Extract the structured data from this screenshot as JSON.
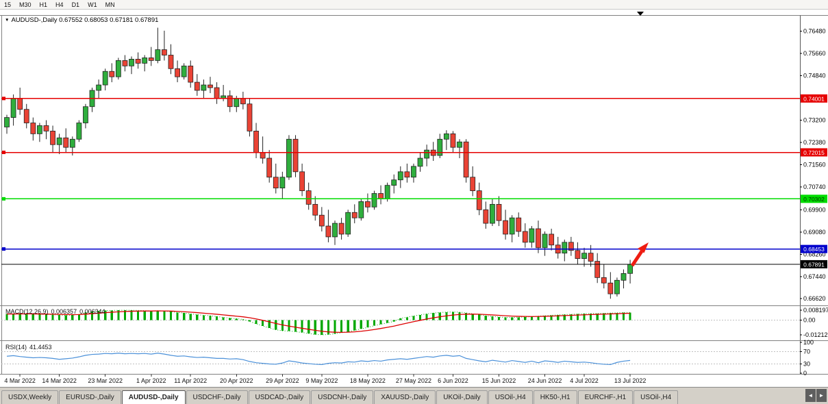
{
  "toolbar": {
    "timeframes": [
      "15",
      "M30",
      "H1",
      "H4",
      "D1",
      "W1",
      "MN"
    ]
  },
  "icons": {
    "legend_dropdown": "▼",
    "scroll_left": "◄",
    "scroll_right": "►"
  },
  "legend": {
    "text": "AUDUSD-,Daily 0.67552 0.68053 0.67181 0.67891"
  },
  "chart_data": {
    "type": "candlestick",
    "symbol": "AUDUSD-,Daily",
    "ohlc_display": {
      "open": "0.67552",
      "high": "0.68053",
      "low": "0.67181",
      "close": "0.67891"
    },
    "colors": {
      "bull": "#2fae3d",
      "bear": "#ea4335",
      "outline": "#222222",
      "hline_red": "#e60000",
      "hline_green": "#00dd00",
      "hline_blue": "#0000cc",
      "current": "#000000",
      "macd_hist": "#00a800",
      "macd_signal": "#dd0000",
      "rsi_line": "#4a90d9",
      "level_dash": "#c0c0c0",
      "separator": "#808080"
    },
    "price_axis": {
      "max": 0.77,
      "min": 0.665,
      "labels": [
        "0.76480",
        "0.75660",
        "0.74840",
        "0.73200",
        "0.72380",
        "0.71560",
        "0.70740",
        "0.69900",
        "0.69080",
        "0.68260",
        "0.67440",
        "0.66620"
      ]
    },
    "hlines": [
      {
        "price": 0.74001,
        "label": "0.74001",
        "color": "#e60000",
        "text_color": "#ffffff"
      },
      {
        "price": 0.72015,
        "label": "0.72015",
        "color": "#e60000",
        "text_color": "#ffffff"
      },
      {
        "price": 0.70302,
        "label": "0.70302",
        "color": "#00dd00",
        "text_color": "#003300"
      },
      {
        "price": 0.68453,
        "label": "0.68453",
        "color": "#0000cc",
        "text_color": "#ffffff"
      }
    ],
    "current_price": {
      "price": 0.67891,
      "label": "0.67891",
      "color": "#000000",
      "text_color": "#ffffff"
    },
    "x_ticks": [
      {
        "index": 2,
        "label": "4 Mar 2022"
      },
      {
        "index": 8,
        "label": "14 Mar 2022"
      },
      {
        "index": 15,
        "label": "23 Mar 2022"
      },
      {
        "index": 22,
        "label": "1 Apr 2022"
      },
      {
        "index": 28,
        "label": "11 Apr 2022"
      },
      {
        "index": 35,
        "label": "20 Apr 2022"
      },
      {
        "index": 42,
        "label": "29 Apr 2022"
      },
      {
        "index": 48,
        "label": "9 May 2022"
      },
      {
        "index": 55,
        "label": "18 May 2022"
      },
      {
        "index": 62,
        "label": "27 May 2022"
      },
      {
        "index": 68,
        "label": "6 Jun 2022"
      },
      {
        "index": 75,
        "label": "15 Jun 2022"
      },
      {
        "index": 82,
        "label": "24 Jun 2022"
      },
      {
        "index": 88,
        "label": "4 Jul 2022"
      },
      {
        "index": 95,
        "label": "13 Jul 2022"
      }
    ],
    "candles": [
      [
        0.7295,
        0.734,
        0.727,
        0.733
      ],
      [
        0.733,
        0.7415,
        0.73,
        0.74
      ],
      [
        0.74,
        0.744,
        0.734,
        0.736
      ],
      [
        0.736,
        0.738,
        0.729,
        0.731
      ],
      [
        0.731,
        0.733,
        0.7245,
        0.727
      ],
      [
        0.727,
        0.731,
        0.724,
        0.73
      ],
      [
        0.73,
        0.732,
        0.725,
        0.728
      ],
      [
        0.728,
        0.73,
        0.72,
        0.723
      ],
      [
        0.723,
        0.727,
        0.7195,
        0.7255
      ],
      [
        0.7255,
        0.729,
        0.72,
        0.722
      ],
      [
        0.722,
        0.726,
        0.719,
        0.725
      ],
      [
        0.725,
        0.732,
        0.724,
        0.731
      ],
      [
        0.731,
        0.738,
        0.729,
        0.737
      ],
      [
        0.737,
        0.744,
        0.735,
        0.743
      ],
      [
        0.743,
        0.747,
        0.74,
        0.745
      ],
      [
        0.745,
        0.751,
        0.743,
        0.75
      ],
      [
        0.75,
        0.753,
        0.746,
        0.748
      ],
      [
        0.748,
        0.755,
        0.747,
        0.754
      ],
      [
        0.754,
        0.756,
        0.75,
        0.752
      ],
      [
        0.752,
        0.7555,
        0.749,
        0.7545
      ],
      [
        0.7545,
        0.757,
        0.751,
        0.753
      ],
      [
        0.753,
        0.756,
        0.75,
        0.755
      ],
      [
        0.755,
        0.759,
        0.752,
        0.754
      ],
      [
        0.754,
        0.7661,
        0.753,
        0.758
      ],
      [
        0.758,
        0.765,
        0.754,
        0.756
      ],
      [
        0.756,
        0.76,
        0.749,
        0.751
      ],
      [
        0.751,
        0.754,
        0.746,
        0.748
      ],
      [
        0.748,
        0.753,
        0.747,
        0.752
      ],
      [
        0.752,
        0.754,
        0.744,
        0.746
      ],
      [
        0.746,
        0.749,
        0.741,
        0.743
      ],
      [
        0.743,
        0.747,
        0.74,
        0.745
      ],
      [
        0.745,
        0.748,
        0.742,
        0.744
      ],
      [
        0.744,
        0.746,
        0.738,
        0.74
      ],
      [
        0.74,
        0.745,
        0.739,
        0.741
      ],
      [
        0.741,
        0.743,
        0.735,
        0.737
      ],
      [
        0.737,
        0.741,
        0.735,
        0.74
      ],
      [
        0.74,
        0.7425,
        0.736,
        0.738
      ],
      [
        0.738,
        0.74,
        0.726,
        0.728
      ],
      [
        0.728,
        0.731,
        0.718,
        0.72
      ],
      [
        0.72,
        0.726,
        0.716,
        0.718
      ],
      [
        0.718,
        0.721,
        0.709,
        0.711
      ],
      [
        0.711,
        0.716,
        0.705,
        0.707
      ],
      [
        0.707,
        0.713,
        0.703,
        0.711
      ],
      [
        0.711,
        0.7265,
        0.71,
        0.725
      ],
      [
        0.725,
        0.7265,
        0.711,
        0.713
      ],
      [
        0.713,
        0.716,
        0.704,
        0.706
      ],
      [
        0.706,
        0.709,
        0.699,
        0.701
      ],
      [
        0.701,
        0.704,
        0.695,
        0.697
      ],
      [
        0.697,
        0.7,
        0.691,
        0.693
      ],
      [
        0.693,
        0.699,
        0.687,
        0.689
      ],
      [
        0.689,
        0.695,
        0.686,
        0.694
      ],
      [
        0.694,
        0.696,
        0.688,
        0.69
      ],
      [
        0.69,
        0.699,
        0.689,
        0.698
      ],
      [
        0.698,
        0.701,
        0.694,
        0.696
      ],
      [
        0.696,
        0.703,
        0.695,
        0.702
      ],
      [
        0.702,
        0.705,
        0.698,
        0.7
      ],
      [
        0.7,
        0.706,
        0.699,
        0.705
      ],
      [
        0.705,
        0.708,
        0.701,
        0.703
      ],
      [
        0.703,
        0.709,
        0.702,
        0.708
      ],
      [
        0.708,
        0.712,
        0.705,
        0.71
      ],
      [
        0.71,
        0.715,
        0.707,
        0.713
      ],
      [
        0.713,
        0.716,
        0.709,
        0.711
      ],
      [
        0.711,
        0.716,
        0.709,
        0.715
      ],
      [
        0.715,
        0.72,
        0.713,
        0.718
      ],
      [
        0.718,
        0.723,
        0.715,
        0.721
      ],
      [
        0.721,
        0.724,
        0.717,
        0.719
      ],
      [
        0.719,
        0.727,
        0.718,
        0.725
      ],
      [
        0.725,
        0.7283,
        0.721,
        0.727
      ],
      [
        0.727,
        0.728,
        0.72,
        0.722
      ],
      [
        0.722,
        0.725,
        0.718,
        0.724
      ],
      [
        0.724,
        0.725,
        0.709,
        0.711
      ],
      [
        0.711,
        0.715,
        0.704,
        0.706
      ],
      [
        0.706,
        0.709,
        0.697,
        0.699
      ],
      [
        0.699,
        0.702,
        0.692,
        0.694
      ],
      [
        0.694,
        0.703,
        0.693,
        0.701
      ],
      [
        0.701,
        0.704,
        0.693,
        0.695
      ],
      [
        0.695,
        0.699,
        0.688,
        0.69
      ],
      [
        0.69,
        0.697,
        0.687,
        0.696
      ],
      [
        0.696,
        0.698,
        0.689,
        0.691
      ],
      [
        0.691,
        0.694,
        0.685,
        0.687
      ],
      [
        0.687,
        0.693,
        0.685,
        0.692
      ],
      [
        0.692,
        0.695,
        0.683,
        0.685
      ],
      [
        0.685,
        0.691,
        0.682,
        0.69
      ],
      [
        0.69,
        0.692,
        0.684,
        0.686
      ],
      [
        0.686,
        0.689,
        0.681,
        0.683
      ],
      [
        0.683,
        0.688,
        0.68,
        0.687
      ],
      [
        0.687,
        0.689,
        0.682,
        0.684
      ],
      [
        0.684,
        0.687,
        0.679,
        0.681
      ],
      [
        0.681,
        0.685,
        0.678,
        0.683
      ],
      [
        0.683,
        0.686,
        0.678,
        0.68
      ],
      [
        0.68,
        0.683,
        0.672,
        0.674
      ],
      [
        0.674,
        0.679,
        0.67,
        0.672
      ],
      [
        0.672,
        0.676,
        0.6662,
        0.668
      ],
      [
        0.668,
        0.674,
        0.667,
        0.673
      ],
      [
        0.673,
        0.677,
        0.67,
        0.6755
      ],
      [
        0.67552,
        0.68053,
        0.67181,
        0.67891
      ]
    ],
    "arrow_annotation": {
      "color": "#ee1c12",
      "direction": "up-right"
    },
    "indicators": {
      "macd": {
        "label": "MACD(12,26,9)",
        "value_main": "0.006357",
        "value_signal": "0.006344",
        "axis": [
          {
            "label": "0.008197",
            "value": 0.008197
          },
          {
            "label": "0.00",
            "value": 0
          },
          {
            "label": "-0.01212",
            "value": -0.01212
          }
        ],
        "values": [
          0.005,
          0.0052,
          0.0055,
          0.0053,
          0.005,
          0.0048,
          0.0047,
          0.0045,
          0.0042,
          0.004,
          0.0042,
          0.0048,
          0.0062,
          0.007,
          0.0075,
          0.0078,
          0.008,
          0.0081,
          0.0082,
          0.0081,
          0.008,
          0.0078,
          0.0076,
          0.0078,
          0.0075,
          0.007,
          0.0063,
          0.0058,
          0.0052,
          0.0045,
          0.004,
          0.0036,
          0.003,
          0.0022,
          0.0016,
          0.0012,
          0.0006,
          -0.001,
          -0.003,
          -0.0048,
          -0.0065,
          -0.008,
          -0.0088,
          -0.009,
          -0.0095,
          -0.0102,
          -0.011,
          -0.0118,
          -0.0121,
          -0.0119,
          -0.0112,
          -0.0104,
          -0.0095,
          -0.0085,
          -0.0072,
          -0.006,
          -0.0046,
          -0.0034,
          -0.0022,
          -0.001,
          0.0014,
          0.0024,
          0.0034,
          0.0043,
          0.0052,
          0.0058,
          0.0063,
          0.0066,
          0.0067,
          0.0066,
          0.006,
          0.0052,
          0.0044,
          0.0036,
          0.003,
          0.0026,
          0.0022,
          0.0022,
          0.0024,
          0.0026,
          0.0028,
          0.0033,
          0.0036,
          0.004,
          0.0043,
          0.0046,
          0.0048,
          0.005,
          0.0053,
          0.0054,
          0.0055,
          0.0056,
          0.0058,
          0.006,
          0.0062,
          0.006357
        ]
      },
      "rsi": {
        "label": "RSI(14)",
        "value": "41.4453",
        "axis": [
          {
            "label": "100",
            "value": 100
          },
          {
            "label": "70",
            "value": 70
          },
          {
            "label": "30",
            "value": 30
          },
          {
            "label": "0",
            "value": 0
          }
        ],
        "levels": [
          70,
          30
        ],
        "values": [
          55,
          57,
          54,
          52,
          50,
          51,
          50,
          48,
          45,
          47,
          49,
          53,
          58,
          61,
          62,
          64,
          63,
          65,
          63,
          64,
          63,
          64,
          62,
          65,
          62,
          58,
          55,
          56,
          53,
          51,
          52,
          50,
          48,
          48,
          46,
          47,
          44,
          38,
          34,
          32,
          30,
          29,
          33,
          40,
          37,
          33,
          31,
          29,
          28,
          32,
          34,
          33,
          37,
          36,
          40,
          38,
          41,
          39,
          43,
          45,
          47,
          45,
          48,
          51,
          54,
          52,
          56,
          58,
          55,
          57,
          48,
          44,
          40,
          37,
          42,
          39,
          36,
          41,
          38,
          35,
          39,
          34,
          40,
          38,
          35,
          39,
          37,
          35,
          36,
          34,
          31,
          29,
          28,
          35,
          39,
          41.4453
        ]
      }
    }
  },
  "tabs": {
    "items": [
      {
        "label": "USDX,Weekly",
        "active": false
      },
      {
        "label": "EURUSD-,Daily",
        "active": false
      },
      {
        "label": "AUDUSD-,Daily",
        "active": true
      },
      {
        "label": "USDCHF-,Daily",
        "active": false
      },
      {
        "label": "USDCAD-,Daily",
        "active": false
      },
      {
        "label": "USDCNH-,Daily",
        "active": false
      },
      {
        "label": "XAUUSD-,Daily",
        "active": false
      },
      {
        "label": "UKOil-,Daily",
        "active": false
      },
      {
        "label": "USOil-,H4",
        "active": false
      },
      {
        "label": "HK50-,H1",
        "active": false
      },
      {
        "label": "EURCHF-,H1",
        "active": false
      },
      {
        "label": "USOil-,H4",
        "active": false
      }
    ]
  }
}
